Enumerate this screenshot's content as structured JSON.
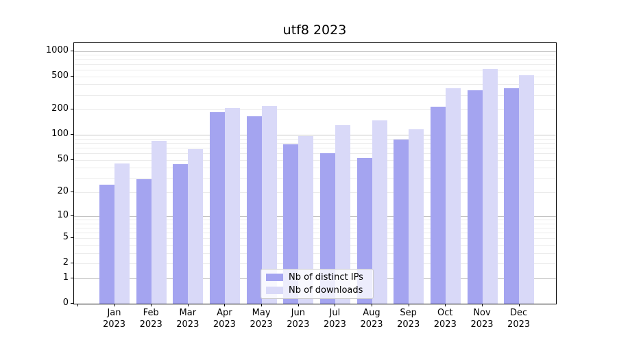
{
  "figure": {
    "title": "utf8 2023"
  },
  "chart_data": {
    "type": "bar",
    "title": "utf8 2023",
    "categories": [
      "Jan 2023",
      "Feb 2023",
      "Mar 2023",
      "Apr 2023",
      "May 2023",
      "Jun 2023",
      "Jul 2023",
      "Aug 2023",
      "Sep 2023",
      "Oct 2023",
      "Nov 2023",
      "Dec 2023"
    ],
    "series": [
      {
        "name": "Nb of distinct IPs",
        "color": "#a4a4f0",
        "values": [
          25,
          29,
          44,
          188,
          167,
          77,
          60,
          53,
          88,
          216,
          340,
          361
        ]
      },
      {
        "name": "Nb of downloads",
        "color": "#d9d9f8",
        "values": [
          45,
          85,
          67,
          211,
          220,
          97,
          131,
          150,
          116,
          364,
          610,
          515
        ]
      }
    ],
    "yscale": "log1p",
    "y_ticks": [
      0,
      1,
      2,
      5,
      10,
      20,
      50,
      100,
      200,
      500,
      1000
    ],
    "ylim": [
      0,
      1240
    ],
    "xlabel": "",
    "ylabel": "",
    "grid": true,
    "legend_position": "lower center",
    "colors": {
      "major_grid": "#c3c3c3",
      "minor_grid": "#ebebeb",
      "spine": "#000000",
      "background": "#ffffff"
    }
  }
}
